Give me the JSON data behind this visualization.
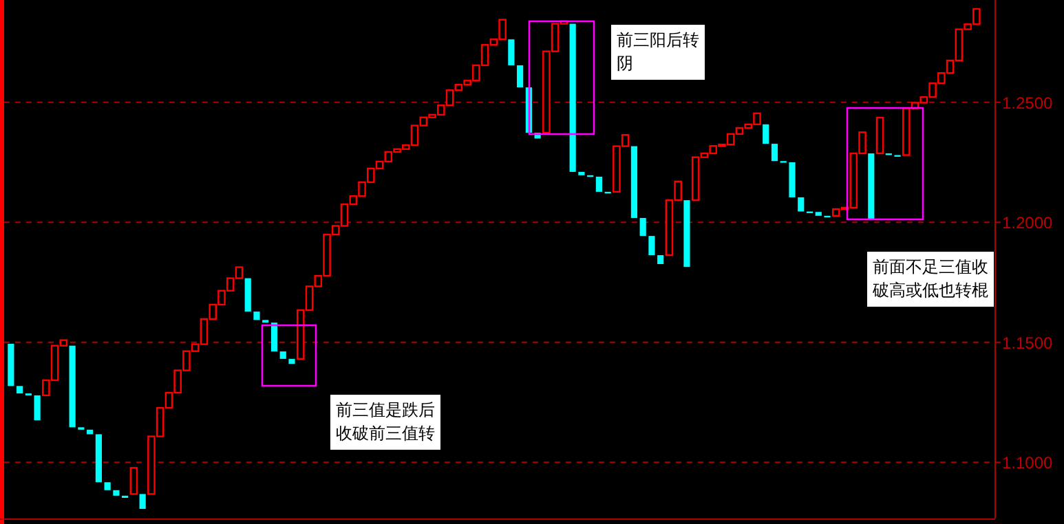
{
  "chart_data": {
    "type": "candlestick",
    "categories": [
      null,
      null,
      null,
      null,
      null,
      null,
      null,
      null,
      null,
      null,
      null,
      null,
      null,
      null,
      null,
      null,
      null,
      null,
      null,
      null,
      null,
      null,
      null,
      null,
      null,
      null,
      null,
      null,
      null,
      null,
      null,
      null,
      null,
      null,
      null,
      null,
      null,
      null,
      null,
      null,
      null,
      null,
      null,
      null,
      null,
      null,
      null,
      null,
      null,
      null,
      null,
      null,
      null,
      null,
      null,
      null,
      null,
      null,
      null,
      null,
      null,
      null,
      null,
      null,
      null,
      null,
      null,
      null,
      null,
      null,
      null,
      null,
      null,
      null,
      null,
      null,
      null,
      null,
      null,
      null,
      null,
      null,
      null,
      null,
      null,
      null,
      null,
      null,
      null,
      null,
      null,
      null,
      null,
      null,
      null,
      null,
      null,
      null,
      null,
      null,
      null,
      null,
      null,
      null,
      null,
      null,
      null,
      null,
      null,
      null,
      null
    ],
    "ohlc": [
      [
        1.1494,
        1.1494,
        1.1318,
        1.1318
      ],
      [
        1.1318,
        1.1318,
        1.1287,
        1.1287
      ],
      [
        1.1287,
        1.1287,
        1.1279,
        1.1279
      ],
      [
        1.1279,
        1.1279,
        1.1175,
        1.1175
      ],
      [
        1.1279,
        1.1342,
        1.1279,
        1.1342
      ],
      [
        1.1342,
        1.1486,
        1.1342,
        1.1486
      ],
      [
        1.1486,
        1.1509,
        1.1486,
        1.1509
      ],
      [
        1.1486,
        1.1486,
        1.1146,
        1.1146
      ],
      [
        1.1146,
        1.1146,
        1.1136,
        1.1136
      ],
      [
        1.1136,
        1.1136,
        1.1117,
        1.1117
      ],
      [
        1.1117,
        1.1117,
        1.0917,
        1.0917
      ],
      [
        1.0917,
        1.0917,
        1.0884,
        1.0884
      ],
      [
        1.0884,
        1.0884,
        1.0861,
        1.0861
      ],
      [
        1.0861,
        1.0861,
        1.0852,
        1.0852
      ],
      [
        1.0868,
        1.0977,
        1.0868,
        1.0977
      ],
      [
        1.0868,
        1.0868,
        1.0806,
        1.0806
      ],
      [
        1.0868,
        1.1108,
        1.0868,
        1.1108
      ],
      [
        1.1108,
        1.1227,
        1.1108,
        1.1227
      ],
      [
        1.1227,
        1.129,
        1.1227,
        1.129
      ],
      [
        1.129,
        1.1383,
        1.129,
        1.1383
      ],
      [
        1.1383,
        1.1463,
        1.1383,
        1.1463
      ],
      [
        1.1463,
        1.1492,
        1.1463,
        1.1492
      ],
      [
        1.1492,
        1.1597,
        1.1492,
        1.1597
      ],
      [
        1.1597,
        1.1657,
        1.1597,
        1.1657
      ],
      [
        1.1657,
        1.1715,
        1.1657,
        1.1715
      ],
      [
        1.1715,
        1.1767,
        1.1715,
        1.1767
      ],
      [
        1.1767,
        1.1813,
        1.1767,
        1.1813
      ],
      [
        1.1767,
        1.1767,
        1.1628,
        1.1628
      ],
      [
        1.1628,
        1.1628,
        1.1593,
        1.1593
      ],
      [
        1.1593,
        1.1593,
        1.1582,
        1.1582
      ],
      [
        1.1582,
        1.1582,
        1.1462,
        1.1462
      ],
      [
        1.1462,
        1.1462,
        1.1431,
        1.1431
      ],
      [
        1.1431,
        1.1431,
        1.141,
        1.141
      ],
      [
        1.1431,
        1.1634,
        1.1431,
        1.1634
      ],
      [
        1.1634,
        1.1733,
        1.1634,
        1.1733
      ],
      [
        1.1733,
        1.1777,
        1.1733,
        1.1777
      ],
      [
        1.1777,
        1.1949,
        1.1777,
        1.1949
      ],
      [
        1.1949,
        1.1985,
        1.1949,
        1.1985
      ],
      [
        1.1985,
        1.2075,
        1.1985,
        1.2075
      ],
      [
        1.2075,
        1.2109,
        1.2075,
        1.2109
      ],
      [
        1.2109,
        1.2167,
        1.2109,
        1.2167
      ],
      [
        1.2167,
        1.2224,
        1.2167,
        1.2224
      ],
      [
        1.2224,
        1.2253,
        1.2224,
        1.2253
      ],
      [
        1.2253,
        1.2293,
        1.2253,
        1.2293
      ],
      [
        1.2293,
        1.2305,
        1.2293,
        1.2305
      ],
      [
        1.2305,
        1.2321,
        1.2305,
        1.2321
      ],
      [
        1.2321,
        1.2403,
        1.2321,
        1.2403
      ],
      [
        1.2403,
        1.2437,
        1.2403,
        1.2437
      ],
      [
        1.2437,
        1.2448,
        1.2437,
        1.2448
      ],
      [
        1.2448,
        1.2487,
        1.2448,
        1.2487
      ],
      [
        1.2487,
        1.255,
        1.2487,
        1.255
      ],
      [
        1.255,
        1.2573,
        1.255,
        1.2573
      ],
      [
        1.2573,
        1.259,
        1.2573,
        1.259
      ],
      [
        1.259,
        1.2654,
        1.259,
        1.2654
      ],
      [
        1.2654,
        1.2739,
        1.2654,
        1.2739
      ],
      [
        1.2739,
        1.2762,
        1.2739,
        1.2762
      ],
      [
        1.2762,
        1.2844,
        1.2762,
        1.2844
      ],
      [
        1.2762,
        1.2762,
        1.2654,
        1.2654
      ],
      [
        1.2654,
        1.2654,
        1.2562,
        1.2562
      ],
      [
        1.2562,
        1.2562,
        1.2373,
        1.2373
      ],
      [
        1.2373,
        1.2373,
        1.2349,
        1.2349
      ],
      [
        1.2373,
        1.2712,
        1.2373,
        1.2712
      ],
      [
        1.2712,
        1.2827,
        1.2712,
        1.2827
      ],
      [
        1.2827,
        1.2838,
        1.2827,
        1.2838
      ],
      [
        1.2827,
        1.2827,
        1.221,
        1.221
      ],
      [
        1.221,
        1.221,
        1.2196,
        1.2196
      ],
      [
        1.2196,
        1.2196,
        1.219,
        1.219
      ],
      [
        1.219,
        1.219,
        1.2127,
        1.2127
      ],
      [
        1.2127,
        1.2127,
        1.2124,
        1.2124
      ],
      [
        1.2127,
        1.2317,
        1.2127,
        1.2317
      ],
      [
        1.2317,
        1.2364,
        1.2317,
        1.2364
      ],
      [
        1.2317,
        1.2317,
        1.2018,
        1.2018
      ],
      [
        1.2018,
        1.2018,
        1.1943,
        1.1943
      ],
      [
        1.1943,
        1.1943,
        1.1863,
        1.1863
      ],
      [
        1.1863,
        1.1863,
        1.1826,
        1.1826
      ],
      [
        1.1863,
        1.2092,
        1.1863,
        1.2092
      ],
      [
        1.2092,
        1.217,
        1.2092,
        1.217
      ],
      [
        1.2092,
        1.2092,
        1.1814,
        1.1814
      ],
      [
        1.2092,
        1.2271,
        1.2092,
        1.2271
      ],
      [
        1.2271,
        1.2287,
        1.2271,
        1.2287
      ],
      [
        1.2287,
        1.2318,
        1.2287,
        1.2318
      ],
      [
        1.2318,
        1.2324,
        1.2318,
        1.2324
      ],
      [
        1.2324,
        1.2368,
        1.2324,
        1.2368
      ],
      [
        1.2368,
        1.2393,
        1.2368,
        1.2393
      ],
      [
        1.2393,
        1.2408,
        1.2393,
        1.2408
      ],
      [
        1.2408,
        1.2454,
        1.2408,
        1.2454
      ],
      [
        1.2408,
        1.2408,
        1.2327,
        1.2327
      ],
      [
        1.2327,
        1.2327,
        1.2255,
        1.2255
      ],
      [
        1.2255,
        1.2255,
        1.225,
        1.225
      ],
      [
        1.225,
        1.225,
        1.2104,
        1.2104
      ],
      [
        1.2104,
        1.2104,
        1.2045,
        1.2045
      ],
      [
        1.2045,
        1.2045,
        1.2043,
        1.2043
      ],
      [
        1.2043,
        1.2043,
        1.2027,
        1.2027
      ],
      [
        1.2027,
        1.2027,
        1.2021,
        1.2021
      ],
      [
        1.2027,
        1.2055,
        1.2027,
        1.2055
      ],
      [
        1.2055,
        1.2061,
        1.2055,
        1.2061
      ],
      [
        1.2061,
        1.2287,
        1.2061,
        1.2287
      ],
      [
        1.2287,
        1.2375,
        1.2287,
        1.2375
      ],
      [
        1.2287,
        1.2287,
        1.2015,
        1.2015
      ],
      [
        1.2287,
        1.2436,
        1.2287,
        1.2436
      ],
      [
        1.2287,
        1.2287,
        1.228,
        1.228
      ],
      [
        1.228,
        1.228,
        1.2277,
        1.2277
      ],
      [
        1.228,
        1.2475,
        1.228,
        1.2475
      ],
      [
        1.2475,
        1.2498,
        1.2475,
        1.2498
      ],
      [
        1.2498,
        1.2522,
        1.2498,
        1.2522
      ],
      [
        1.2522,
        1.2579,
        1.2522,
        1.2579
      ],
      [
        1.2579,
        1.2622,
        1.2579,
        1.2622
      ],
      [
        1.2622,
        1.2674,
        1.2622,
        1.2674
      ],
      [
        1.2674,
        1.2804,
        1.2674,
        1.2804
      ],
      [
        1.2804,
        1.2825,
        1.2804,
        1.2825
      ],
      [
        1.2825,
        1.2889,
        1.2825,
        1.2889
      ]
    ],
    "colors": [
      "#00ffff",
      "#00ffff",
      "#00ffff",
      "#00ffff",
      "#ff0000",
      "#ff0000",
      "#ff0000",
      "#00ffff",
      "#00ffff",
      "#00ffff",
      "#00ffff",
      "#00ffff",
      "#00ffff",
      "#00ffff",
      "#ff0000",
      "#00ffff",
      "#ff0000",
      "#ff0000",
      "#ff0000",
      "#ff0000",
      "#ff0000",
      "#ff0000",
      "#ff0000",
      "#ff0000",
      "#ff0000",
      "#ff0000",
      "#ff0000",
      "#00ffff",
      "#00ffff",
      "#00ffff",
      "#00ffff",
      "#00ffff",
      "#00ffff",
      "#ff0000",
      "#ff0000",
      "#ff0000",
      "#ff0000",
      "#ff0000",
      "#ff0000",
      "#ff0000",
      "#ff0000",
      "#ff0000",
      "#ff0000",
      "#ff0000",
      "#ff0000",
      "#ff0000",
      "#ff0000",
      "#ff0000",
      "#ff0000",
      "#ff0000",
      "#ff0000",
      "#ff0000",
      "#ff0000",
      "#ff0000",
      "#ff0000",
      "#ff0000",
      "#ff0000",
      "#00ffff",
      "#00ffff",
      "#00ffff",
      "#00ffff",
      "#ff0000",
      "#ff0000",
      "#ff0000",
      "#00ffff",
      "#00ffff",
      "#00ffff",
      "#00ffff",
      "#00ffff",
      "#ff0000",
      "#ff0000",
      "#00ffff",
      "#00ffff",
      "#00ffff",
      "#00ffff",
      "#ff0000",
      "#ff0000",
      "#00ffff",
      "#ff0000",
      "#ff0000",
      "#ff0000",
      "#ff0000",
      "#ff0000",
      "#ff0000",
      "#ff0000",
      "#ff0000",
      "#00ffff",
      "#00ffff",
      "#00ffff",
      "#00ffff",
      "#00ffff",
      "#00ffff",
      "#00ffff",
      "#00ffff",
      "#ff0000",
      "#ff0000",
      "#ff0000",
      "#ff0000",
      "#00ffff",
      "#ff0000",
      "#00ffff",
      "#00ffff",
      "#ff0000",
      "#ff0000",
      "#ff0000",
      "#ff0000",
      "#ff0000",
      "#ff0000",
      "#ff0000",
      "#ff0000",
      "#ff0000"
    ],
    "ylim": [
      1.0766,
      1.2926
    ],
    "yticks": [
      {
        "value": 1.1,
        "label": "1.1000"
      },
      {
        "value": 1.15,
        "label": "1.1500"
      },
      {
        "value": 1.2,
        "label": "1.2000"
      },
      {
        "value": 1.25,
        "label": "1.2500"
      }
    ],
    "grid": "y",
    "annotations": [
      "前三阳后转阴",
      "前面不足三值收破高或低也转棍",
      "前三值是跌后收破前三值转"
    ]
  }
}
